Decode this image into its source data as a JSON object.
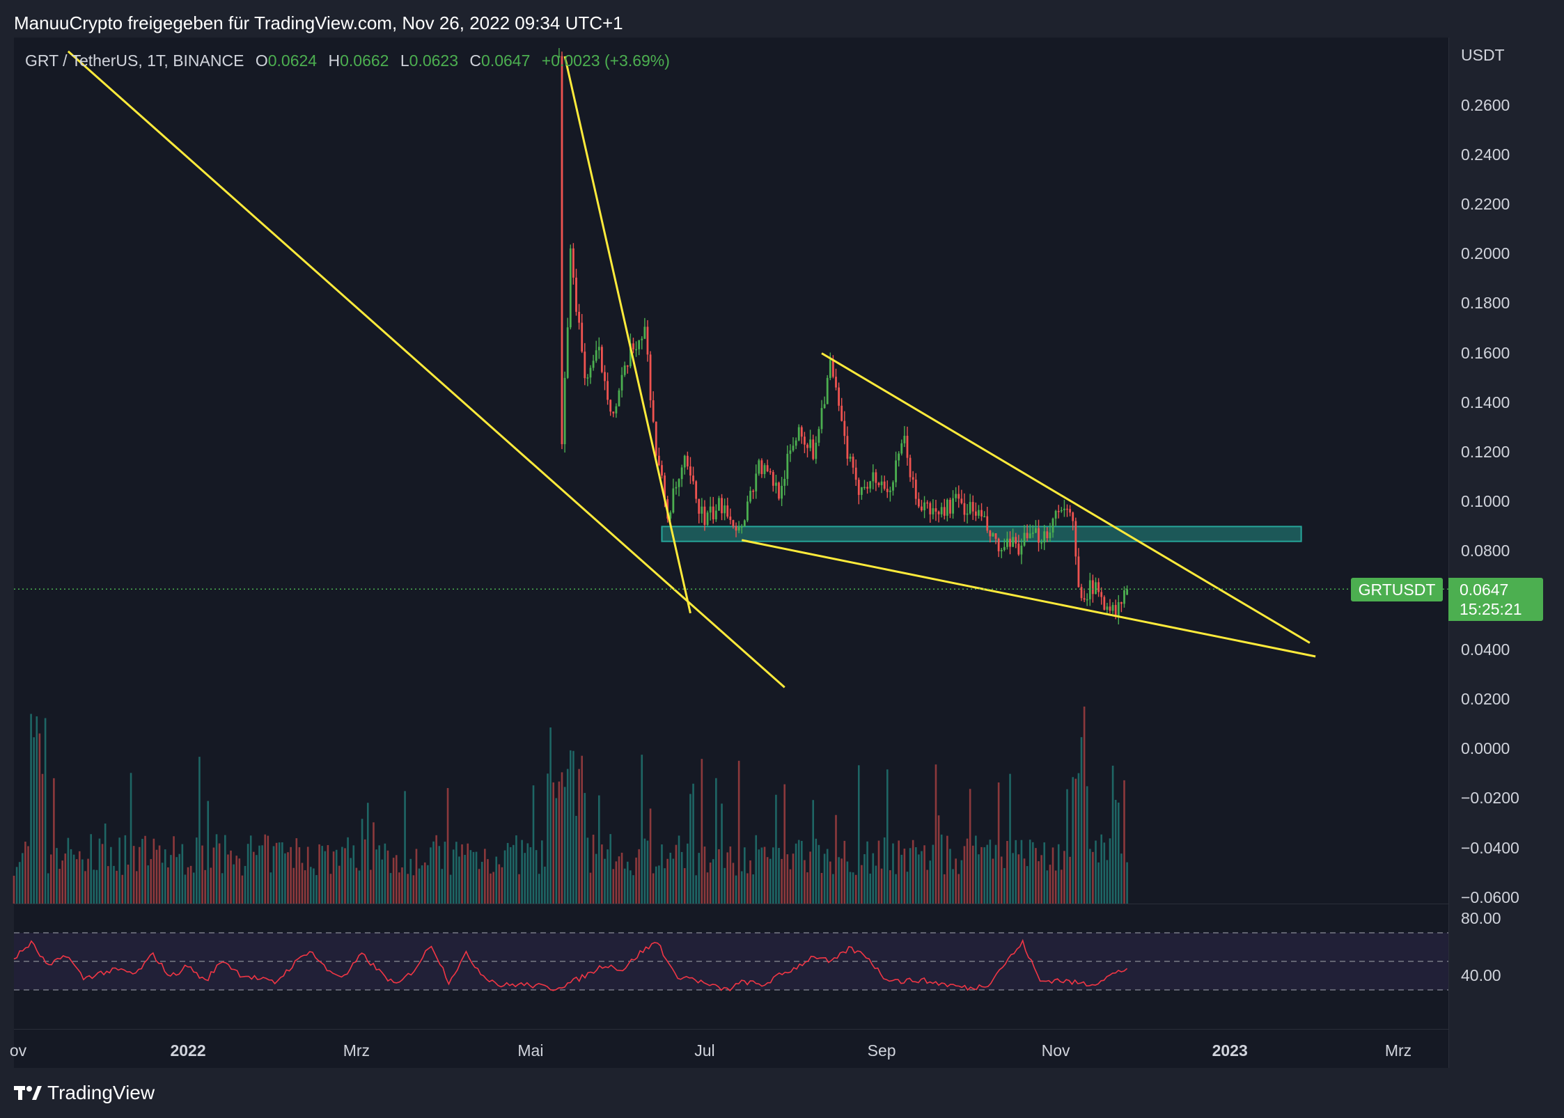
{
  "header": {
    "attribution": "ManuuCrypto freigegeben für TradingView.com, Nov 26, 2022 09:34 UTC+1"
  },
  "legend": {
    "symbol": "GRT / TetherUS, 1T, BINANCE",
    "o_label": "O",
    "o": "0.0624",
    "h_label": "H",
    "h": "0.0662",
    "l_label": "L",
    "l": "0.0623",
    "c_label": "C",
    "c": "0.0647",
    "change": "+0.0023 (+3.69%)"
  },
  "axis": {
    "unit": "USDT",
    "price_ticks": [
      "0.2600",
      "0.2400",
      "0.2200",
      "0.2000",
      "0.1800",
      "0.1600",
      "0.1400",
      "0.1200",
      "0.1000",
      "0.0800",
      "0.0400",
      "0.0200",
      "0.0000",
      "−0.0200",
      "−0.0400",
      "−0.0600"
    ],
    "rsi_ticks": [
      "80.00",
      "40.00"
    ],
    "time_ticks": [
      "ov",
      "2022",
      "Mrz",
      "Mai",
      "Jul",
      "Sep",
      "Nov",
      "2023",
      "Mrz"
    ]
  },
  "badges": {
    "symbol": "GRTUSDT",
    "price": "0.0647",
    "countdown": "15:25:21"
  },
  "footer": {
    "brand": "TradingView"
  },
  "colors": {
    "bull": "#4caf50",
    "bear": "#ef5350",
    "trendline": "#ffeb3b",
    "zone": "#26a69a",
    "rsi": "#f23645"
  },
  "chart_data": {
    "type": "candlestick",
    "symbol": "GRTUSDT",
    "interval": "1D",
    "ylim": [
      -0.06,
      0.28
    ],
    "last_price": 0.0647,
    "price_series": [
      {
        "date": "2022-05-11",
        "close": 0.28
      },
      {
        "date": "2022-05-12",
        "close": 0.12
      },
      {
        "date": "2022-05-15",
        "close": 0.2
      },
      {
        "date": "2022-05-20",
        "close": 0.15
      },
      {
        "date": "2022-05-25",
        "close": 0.16
      },
      {
        "date": "2022-05-30",
        "close": 0.135
      },
      {
        "date": "2022-06-05",
        "close": 0.16
      },
      {
        "date": "2022-06-10",
        "close": 0.17
      },
      {
        "date": "2022-06-14",
        "close": 0.12
      },
      {
        "date": "2022-06-18",
        "close": 0.095
      },
      {
        "date": "2022-06-24",
        "close": 0.115
      },
      {
        "date": "2022-07-01",
        "close": 0.092
      },
      {
        "date": "2022-07-08",
        "close": 0.1
      },
      {
        "date": "2022-07-13",
        "close": 0.088
      },
      {
        "date": "2022-07-20",
        "close": 0.115
      },
      {
        "date": "2022-07-27",
        "close": 0.105
      },
      {
        "date": "2022-08-03",
        "close": 0.13
      },
      {
        "date": "2022-08-08",
        "close": 0.12
      },
      {
        "date": "2022-08-14",
        "close": 0.155
      },
      {
        "date": "2022-08-19",
        "close": 0.125
      },
      {
        "date": "2022-08-23",
        "close": 0.105
      },
      {
        "date": "2022-08-28",
        "close": 0.11
      },
      {
        "date": "2022-09-04",
        "close": 0.105
      },
      {
        "date": "2022-09-09",
        "close": 0.125
      },
      {
        "date": "2022-09-13",
        "close": 0.1
      },
      {
        "date": "2022-09-20",
        "close": 0.095
      },
      {
        "date": "2022-09-27",
        "close": 0.1
      },
      {
        "date": "2022-10-05",
        "close": 0.095
      },
      {
        "date": "2022-10-12",
        "close": 0.08
      },
      {
        "date": "2022-10-20",
        "close": 0.083
      },
      {
        "date": "2022-10-29",
        "close": 0.088
      },
      {
        "date": "2022-11-03",
        "close": 0.1
      },
      {
        "date": "2022-11-07",
        "close": 0.09
      },
      {
        "date": "2022-11-09",
        "close": 0.064
      },
      {
        "date": "2022-11-14",
        "close": 0.065
      },
      {
        "date": "2022-11-20",
        "close": 0.058
      },
      {
        "date": "2022-11-22",
        "close": 0.054
      },
      {
        "date": "2022-11-26",
        "close": 0.0647
      }
    ],
    "support_zone": {
      "from_date": "2022-06-16",
      "to_date": "2023-01-26",
      "low": 0.084,
      "high": 0.09
    },
    "trendlines": [
      {
        "from": {
          "date": "2021-11-20",
          "price": 0.282
        },
        "to": {
          "date": "2022-07-29",
          "price": 0.025
        }
      },
      {
        "from": {
          "date": "2022-05-13",
          "price": 0.28
        },
        "to": {
          "date": "2022-06-26",
          "price": 0.055
        }
      },
      {
        "from": {
          "date": "2022-07-14",
          "price": 0.0845
        },
        "to": {
          "date": "2023-01-31",
          "price": 0.0375
        }
      },
      {
        "from": {
          "date": "2022-08-11",
          "price": 0.16
        },
        "to": {
          "date": "2023-01-29",
          "price": 0.043
        }
      }
    ],
    "rsi": {
      "ylim": [
        20,
        100
      ],
      "bands": [
        30,
        50,
        70
      ],
      "values": [
        52,
        63,
        46,
        55,
        38,
        42,
        44,
        41,
        55,
        39,
        47,
        36,
        51,
        41,
        38,
        35,
        47,
        58,
        44,
        39,
        55,
        43,
        33,
        44,
        62,
        36,
        55,
        40,
        33,
        34,
        33,
        31,
        35,
        41,
        48,
        44,
        56,
        64,
        40,
        38,
        33,
        30,
        36,
        33,
        40,
        46,
        54,
        49,
        59,
        54,
        39,
        36,
        37,
        35,
        33,
        31,
        34,
        49,
        63,
        36,
        37,
        35,
        34,
        40,
        45
      ]
    }
  }
}
